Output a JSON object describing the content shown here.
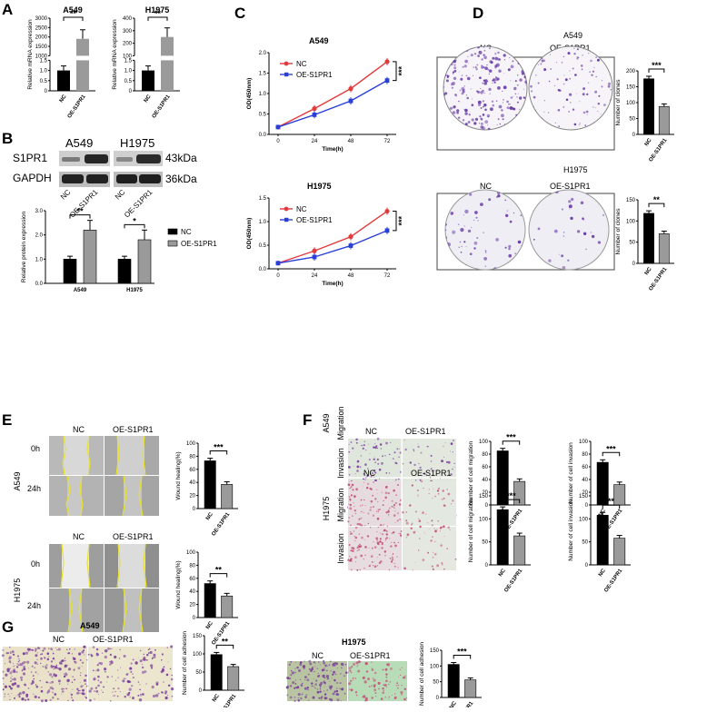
{
  "panels": {
    "A": "A",
    "B": "B",
    "C": "C",
    "D": "D",
    "E": "E",
    "F": "F",
    "G": "G"
  },
  "colors": {
    "nc": "#000000",
    "oe": "#9a9a9a",
    "line_nc": "#e23b3b",
    "line_oe": "#2a3fd8",
    "clone_purple": "#6b3fa8",
    "cell_purple": "#7b3e9c",
    "cell_pink": "#c4517a",
    "wound": "#e8e22a"
  },
  "groups": {
    "nc": "NC",
    "oe": "OE-S1PR1"
  },
  "stars": {
    "s1": "*",
    "s2": "**",
    "s3": "***"
  },
  "panelA": {
    "title_a549": "A549",
    "title_h1975": "H1975",
    "ylabel": "Relative mRNA expression",
    "yticks": [
      "0",
      "0.5",
      "1.0",
      "1.5",
      "1000",
      "1500",
      "2000",
      "2500",
      "3000"
    ],
    "yticks_h": [
      "0",
      "0.5",
      "1.0",
      "1.5",
      "100",
      "200",
      "300",
      "400"
    ]
  },
  "panelB": {
    "cell1": "A549",
    "cell2": "H1975",
    "row1": "S1PR1",
    "row2": "GAPDH",
    "kda1": "43kDa",
    "kda2": "36kDa",
    "ylabel": "Relative protein expression",
    "yticks": [
      "0.0",
      "1.0",
      "2.0",
      "3.0"
    ],
    "xlabels": [
      "A549",
      "H1975"
    ]
  },
  "panelC": {
    "title1": "A549",
    "title2": "H1975",
    "ylabel": "OD(450nm)",
    "xlabel": "Time(h)",
    "xticks": [
      "0",
      "24",
      "48",
      "72"
    ],
    "yticks1": [
      "0.0",
      "0.5",
      "1.0",
      "1.5",
      "2.0"
    ],
    "yticks2": [
      "0.0",
      "0.5",
      "1.0",
      "1.5"
    ]
  },
  "panelD": {
    "title1": "A549",
    "title2": "H1975",
    "ylabel": "Number of clones",
    "yticks1": [
      "0",
      "50",
      "100",
      "150",
      "200"
    ],
    "yticks2": [
      "0",
      "50",
      "100",
      "150"
    ]
  },
  "panelE": {
    "row1": "0h",
    "row2": "24h",
    "cell1": "A549",
    "cell2": "H1975",
    "ylabel": "Wound healing(%)",
    "yticks": [
      "0",
      "20",
      "40",
      "60",
      "80",
      "100"
    ]
  },
  "panelF": {
    "row_m": "Migration",
    "row_i": "Invasion",
    "cell1": "A549",
    "cell2": "H1975",
    "ylabel_m": "Number of cell migration",
    "ylabel_i": "Number of cell invasion",
    "yticks1": [
      "0",
      "20",
      "40",
      "60",
      "80",
      "100"
    ],
    "yticks2": [
      "0",
      "50",
      "100",
      "150"
    ]
  },
  "panelG": {
    "title1": "A549",
    "title2": "H1975",
    "ylabel": "Number of cell adhesion",
    "yticks1": [
      "0",
      "50",
      "100",
      "150"
    ],
    "yticks2": [
      "0",
      "50",
      "100",
      "150"
    ]
  },
  "chart_data": [
    {
      "id": "A-A549",
      "type": "bar",
      "title": "A549",
      "ylabel": "Relative mRNA expression",
      "categories": [
        "NC",
        "OE-S1PR1"
      ],
      "values": [
        1.0,
        1900
      ],
      "broken_axis": true,
      "significance": "**"
    },
    {
      "id": "A-H1975",
      "type": "bar",
      "title": "H1975",
      "ylabel": "Relative mRNA expression",
      "categories": [
        "NC",
        "OE-S1PR1"
      ],
      "values": [
        1.0,
        250
      ],
      "broken_axis": true,
      "significance": "**"
    },
    {
      "id": "B-protein",
      "type": "bar",
      "ylabel": "Relative protein expression",
      "categories": [
        "A549",
        "H1975"
      ],
      "ylim": [
        0,
        3
      ],
      "series": [
        {
          "name": "NC",
          "values": [
            1.0,
            1.0
          ]
        },
        {
          "name": "OE-S1PR1",
          "values": [
            2.2,
            1.8
          ]
        }
      ],
      "significance": [
        "**",
        "*"
      ],
      "legend": "right"
    },
    {
      "id": "C-A549",
      "type": "line",
      "title": "A549",
      "xlabel": "Time(h)",
      "ylabel": "OD(450nm)",
      "x": [
        0,
        24,
        48,
        72
      ],
      "ylim": [
        0,
        2
      ],
      "series": [
        {
          "name": "NC",
          "values": [
            0.18,
            0.63,
            1.12,
            1.78
          ]
        },
        {
          "name": "OE-S1PR1",
          "values": [
            0.18,
            0.48,
            0.82,
            1.32
          ]
        }
      ],
      "significance": "***"
    },
    {
      "id": "C-H1975",
      "type": "line",
      "title": "H1975",
      "xlabel": "Time(h)",
      "ylabel": "OD(450nm)",
      "x": [
        0,
        24,
        48,
        72
      ],
      "ylim": [
        0,
        1.5
      ],
      "series": [
        {
          "name": "NC",
          "values": [
            0.12,
            0.38,
            0.68,
            1.22
          ]
        },
        {
          "name": "OE-S1PR1",
          "values": [
            0.12,
            0.25,
            0.49,
            0.81
          ]
        }
      ],
      "significance": "***"
    },
    {
      "id": "D-A549",
      "type": "bar",
      "ylabel": "Number of clones",
      "categories": [
        "NC",
        "OE-S1PR1"
      ],
      "values": [
        175,
        88
      ],
      "ylim": [
        0,
        200
      ],
      "significance": "***"
    },
    {
      "id": "D-H1975",
      "type": "bar",
      "ylabel": "Number of clones",
      "categories": [
        "NC",
        "OE-S1PR1"
      ],
      "values": [
        118,
        70
      ],
      "ylim": [
        0,
        150
      ],
      "significance": "**"
    },
    {
      "id": "E-A549",
      "type": "bar",
      "ylabel": "Wound healing(%)",
      "categories": [
        "NC",
        "OE-S1PR1"
      ],
      "values": [
        73,
        37
      ],
      "ylim": [
        0,
        100
      ],
      "significance": "***"
    },
    {
      "id": "E-H1975",
      "type": "bar",
      "ylabel": "Wound healing(%)",
      "categories": [
        "NC",
        "OE-S1PR1"
      ],
      "values": [
        52,
        33
      ],
      "ylim": [
        0,
        100
      ],
      "significance": "**"
    },
    {
      "id": "F-A549-mig",
      "type": "bar",
      "ylabel": "Number of cell migration",
      "categories": [
        "NC",
        "OE-S1PR1"
      ],
      "values": [
        85,
        37
      ],
      "ylim": [
        0,
        100
      ],
      "significance": "***"
    },
    {
      "id": "F-A549-inv",
      "type": "bar",
      "ylabel": "Number of cell invasion",
      "categories": [
        "NC",
        "OE-S1PR1"
      ],
      "values": [
        67,
        32
      ],
      "ylim": [
        0,
        100
      ],
      "significance": "***"
    },
    {
      "id": "F-H1975-mig",
      "type": "bar",
      "ylabel": "Number of cell migration",
      "categories": [
        "NC",
        "OE-S1PR1"
      ],
      "values": [
        120,
        63
      ],
      "ylim": [
        0,
        150
      ],
      "significance": "***"
    },
    {
      "id": "F-H1975-inv",
      "type": "bar",
      "ylabel": "Number of cell invasion",
      "categories": [
        "NC",
        "OE-S1PR1"
      ],
      "values": [
        108,
        58
      ],
      "ylim": [
        0,
        150
      ],
      "significance": "**"
    },
    {
      "id": "G-A549",
      "type": "bar",
      "title": "A549",
      "ylabel": "Number of cell adhesion",
      "categories": [
        "NC",
        "OE-S1PR1"
      ],
      "values": [
        98,
        65
      ],
      "ylim": [
        0,
        150
      ],
      "significance": "**"
    },
    {
      "id": "G-H1975",
      "type": "bar",
      "title": "H1975",
      "ylabel": "Number of cell adhesion",
      "categories": [
        "NC",
        "OE-S1PR1"
      ],
      "values": [
        105,
        56
      ],
      "ylim": [
        0,
        150
      ],
      "significance": "***"
    }
  ]
}
